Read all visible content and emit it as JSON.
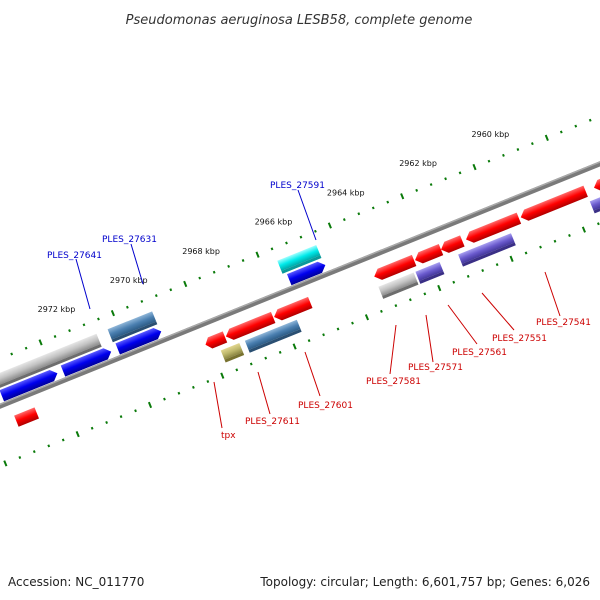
{
  "title": "Pseudomonas aeruginosa LESB58, complete genome",
  "footer": {
    "accession": "Accession: NC_011770",
    "summary": "Topology: circular; Length: 6,601,757 bp; Genes: 6,026"
  },
  "kbp_marks": [
    "2960 kbp",
    "2962 kbp",
    "2964 kbp",
    "2966 kbp",
    "2968 kbp",
    "2970 kbp",
    "2972 kbp"
  ],
  "gene_labels": {
    "forward": [
      "PLES_27591",
      "PLES_27631",
      "PLES_27641"
    ],
    "reverse": [
      "PLES_27541",
      "PLES_27551",
      "PLES_27561",
      "PLES_27571",
      "PLES_27581",
      "PLES_27601",
      "PLES_27611",
      "tpx"
    ]
  },
  "colors": {
    "forward_label": "#0000cc",
    "reverse_label": "#cc0000",
    "backbone": "#777777",
    "tick": "#0a7a0a"
  }
}
